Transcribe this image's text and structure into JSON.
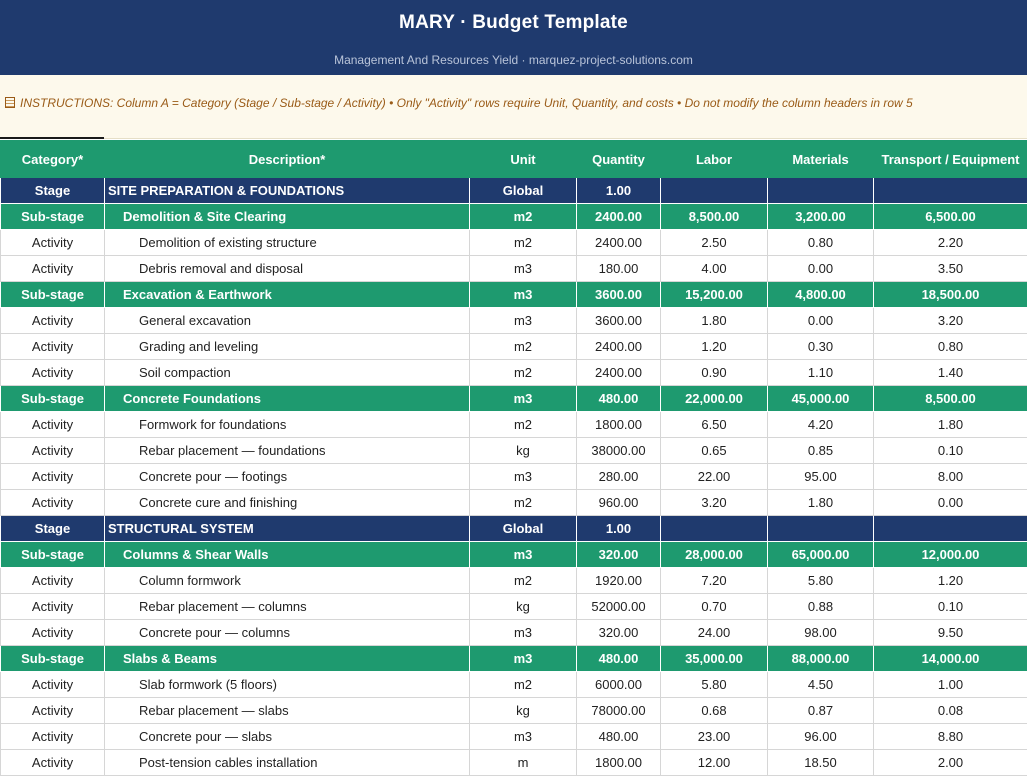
{
  "header": {
    "title": "MARY · Budget Template",
    "subtitle": "Management And Resources Yield  ·  marquez-project-solutions.com"
  },
  "instructions": {
    "icon": "document-icon",
    "text": "INSTRUCTIONS: Column A = Category (Stage / Sub-stage / Activity)  •  Only \"Activity\" rows require Unit, Quantity, and costs  •  Do not modify the column headers in row 5"
  },
  "columns": [
    "Category*",
    "Description*",
    "Unit",
    "Quantity",
    "Labor",
    "Materials",
    "Transport / Equipment"
  ],
  "colors": {
    "header_navy": "#1f3a6e",
    "header_green": "#1e9a6f",
    "instruction_text": "#9a5b17",
    "instruction_bg": "#fdf9ec"
  },
  "rows": [
    {
      "type": "stage",
      "category": "Stage",
      "description": "SITE PREPARATION & FOUNDATIONS",
      "unit": "Global",
      "quantity": "1.00",
      "labor": "",
      "materials": "",
      "transport": ""
    },
    {
      "type": "sub",
      "category": "Sub-stage",
      "description": "Demolition & Site Clearing",
      "unit": "m2",
      "quantity": "2400.00",
      "labor": "8,500.00",
      "materials": "3,200.00",
      "transport": "6,500.00"
    },
    {
      "type": "act",
      "category": "Activity",
      "description": "Demolition of existing structure",
      "unit": "m2",
      "quantity": "2400.00",
      "labor": "2.50",
      "materials": "0.80",
      "transport": "2.20"
    },
    {
      "type": "act",
      "category": "Activity",
      "description": "Debris removal and disposal",
      "unit": "m3",
      "quantity": "180.00",
      "labor": "4.00",
      "materials": "0.00",
      "transport": "3.50"
    },
    {
      "type": "sub",
      "category": "Sub-stage",
      "description": "Excavation & Earthwork",
      "unit": "m3",
      "quantity": "3600.00",
      "labor": "15,200.00",
      "materials": "4,800.00",
      "transport": "18,500.00"
    },
    {
      "type": "act",
      "category": "Activity",
      "description": "General excavation",
      "unit": "m3",
      "quantity": "3600.00",
      "labor": "1.80",
      "materials": "0.00",
      "transport": "3.20"
    },
    {
      "type": "act",
      "category": "Activity",
      "description": "Grading and leveling",
      "unit": "m2",
      "quantity": "2400.00",
      "labor": "1.20",
      "materials": "0.30",
      "transport": "0.80"
    },
    {
      "type": "act",
      "category": "Activity",
      "description": "Soil compaction",
      "unit": "m2",
      "quantity": "2400.00",
      "labor": "0.90",
      "materials": "1.10",
      "transport": "1.40"
    },
    {
      "type": "sub",
      "category": "Sub-stage",
      "description": "Concrete Foundations",
      "unit": "m3",
      "quantity": "480.00",
      "labor": "22,000.00",
      "materials": "45,000.00",
      "transport": "8,500.00"
    },
    {
      "type": "act",
      "category": "Activity",
      "description": "Formwork for foundations",
      "unit": "m2",
      "quantity": "1800.00",
      "labor": "6.50",
      "materials": "4.20",
      "transport": "1.80"
    },
    {
      "type": "act",
      "category": "Activity",
      "description": "Rebar placement — foundations",
      "unit": "kg",
      "quantity": "38000.00",
      "labor": "0.65",
      "materials": "0.85",
      "transport": "0.10"
    },
    {
      "type": "act",
      "category": "Activity",
      "description": "Concrete pour — footings",
      "unit": "m3",
      "quantity": "280.00",
      "labor": "22.00",
      "materials": "95.00",
      "transport": "8.00"
    },
    {
      "type": "act",
      "category": "Activity",
      "description": "Concrete cure and finishing",
      "unit": "m2",
      "quantity": "960.00",
      "labor": "3.20",
      "materials": "1.80",
      "transport": "0.00"
    },
    {
      "type": "stage",
      "category": "Stage",
      "description": "STRUCTURAL SYSTEM",
      "unit": "Global",
      "quantity": "1.00",
      "labor": "",
      "materials": "",
      "transport": ""
    },
    {
      "type": "sub",
      "category": "Sub-stage",
      "description": "Columns & Shear Walls",
      "unit": "m3",
      "quantity": "320.00",
      "labor": "28,000.00",
      "materials": "65,000.00",
      "transport": "12,000.00"
    },
    {
      "type": "act",
      "category": "Activity",
      "description": "Column formwork",
      "unit": "m2",
      "quantity": "1920.00",
      "labor": "7.20",
      "materials": "5.80",
      "transport": "1.20"
    },
    {
      "type": "act",
      "category": "Activity",
      "description": "Rebar placement — columns",
      "unit": "kg",
      "quantity": "52000.00",
      "labor": "0.70",
      "materials": "0.88",
      "transport": "0.10"
    },
    {
      "type": "act",
      "category": "Activity",
      "description": "Concrete pour — columns",
      "unit": "m3",
      "quantity": "320.00",
      "labor": "24.00",
      "materials": "98.00",
      "transport": "9.50"
    },
    {
      "type": "sub",
      "category": "Sub-stage",
      "description": "Slabs & Beams",
      "unit": "m3",
      "quantity": "480.00",
      "labor": "35,000.00",
      "materials": "88,000.00",
      "transport": "14,000.00"
    },
    {
      "type": "act",
      "category": "Activity",
      "description": "Slab formwork (5 floors)",
      "unit": "m2",
      "quantity": "6000.00",
      "labor": "5.80",
      "materials": "4.50",
      "transport": "1.00"
    },
    {
      "type": "act",
      "category": "Activity",
      "description": "Rebar placement — slabs",
      "unit": "kg",
      "quantity": "78000.00",
      "labor": "0.68",
      "materials": "0.87",
      "transport": "0.08"
    },
    {
      "type": "act",
      "category": "Activity",
      "description": "Concrete pour — slabs",
      "unit": "m3",
      "quantity": "480.00",
      "labor": "23.00",
      "materials": "96.00",
      "transport": "8.80"
    },
    {
      "type": "act",
      "category": "Activity",
      "description": "Post-tension cables installation",
      "unit": "m",
      "quantity": "1800.00",
      "labor": "12.00",
      "materials": "18.50",
      "transport": "2.00"
    }
  ]
}
